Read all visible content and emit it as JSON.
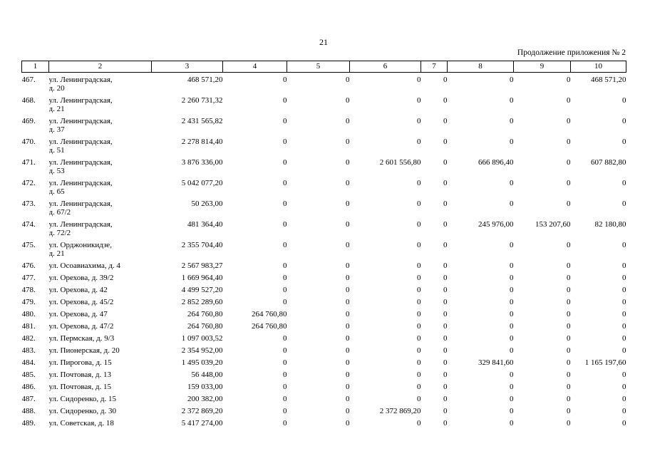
{
  "page": {
    "number": "21",
    "header_right": "Продолжение приложения № 2"
  },
  "table": {
    "columns": [
      "1",
      "2",
      "3",
      "4",
      "5",
      "6",
      "7",
      "8",
      "9",
      "10"
    ],
    "rows": [
      {
        "num": "467.",
        "address": [
          "ул. Ленинградская,",
          "д. 20"
        ],
        "values": [
          "468 571,20",
          "0",
          "0",
          "0",
          "0",
          "0",
          "0",
          "468 571,20"
        ]
      },
      {
        "num": "468.",
        "address": [
          "ул. Ленинградская,",
          "д. 21"
        ],
        "values": [
          "2 260 731,32",
          "0",
          "0",
          "0",
          "0",
          "0",
          "0",
          "0"
        ]
      },
      {
        "num": "469.",
        "address": [
          "ул. Ленинградская,",
          "д. 37"
        ],
        "values": [
          "2 431 565,82",
          "0",
          "0",
          "0",
          "0",
          "0",
          "0",
          "0"
        ]
      },
      {
        "num": "470.",
        "address": [
          "ул. Ленинградская,",
          "д. 51"
        ],
        "values": [
          "2 278 814,40",
          "0",
          "0",
          "0",
          "0",
          "0",
          "0",
          "0"
        ]
      },
      {
        "num": "471.",
        "address": [
          "ул. Ленинградская,",
          "д. 53"
        ],
        "values": [
          "3 876 336,00",
          "0",
          "0",
          "2 601 556,80",
          "0",
          "666 896,40",
          "0",
          "607 882,80"
        ]
      },
      {
        "num": "472.",
        "address": [
          "ул. Ленинградская,",
          "д. 65"
        ],
        "values": [
          "5 042 077,20",
          "0",
          "0",
          "0",
          "0",
          "0",
          "0",
          "0"
        ]
      },
      {
        "num": "473.",
        "address": [
          "ул. Ленинградская,",
          "д. 67/2"
        ],
        "values": [
          "50 263,00",
          "0",
          "0",
          "0",
          "0",
          "0",
          "0",
          "0"
        ]
      },
      {
        "num": "474.",
        "address": [
          "ул. Ленинградская,",
          "д. 72/2"
        ],
        "values": [
          "481 364,40",
          "0",
          "0",
          "0",
          "0",
          "245 976,00",
          "153 207,60",
          "82 180,80"
        ]
      },
      {
        "num": "475.",
        "address": [
          "ул. Орджоникидзе,",
          "д. 21"
        ],
        "values": [
          "2 355 704,40",
          "0",
          "0",
          "0",
          "0",
          "0",
          "0",
          "0"
        ]
      },
      {
        "num": "476.",
        "address": [
          "ул. Осоавиахима, д. 4"
        ],
        "values": [
          "2 567 983,27",
          "0",
          "0",
          "0",
          "0",
          "0",
          "0",
          "0"
        ]
      },
      {
        "num": "477.",
        "address": [
          "ул. Орехова, д. 39/2"
        ],
        "values": [
          "1 669 964,40",
          "0",
          "0",
          "0",
          "0",
          "0",
          "0",
          "0"
        ]
      },
      {
        "num": "478.",
        "address": [
          "ул. Орехова, д. 42"
        ],
        "values": [
          "4 499 527,20",
          "0",
          "0",
          "0",
          "0",
          "0",
          "0",
          "0"
        ]
      },
      {
        "num": "479.",
        "address": [
          "ул. Орехова, д. 45/2"
        ],
        "values": [
          "2 852 289,60",
          "0",
          "0",
          "0",
          "0",
          "0",
          "0",
          "0"
        ]
      },
      {
        "num": "480.",
        "address": [
          "ул. Орехова, д. 47"
        ],
        "values": [
          "264 760,80",
          "264 760,80",
          "0",
          "0",
          "0",
          "0",
          "0",
          "0"
        ]
      },
      {
        "num": "481.",
        "address": [
          "ул. Орехова, д. 47/2"
        ],
        "values": [
          "264 760,80",
          "264 760,80",
          "0",
          "0",
          "0",
          "0",
          "0",
          "0"
        ]
      },
      {
        "num": "482.",
        "address": [
          "ул. Пермская, д. 9/3"
        ],
        "values": [
          "1 097 003,52",
          "0",
          "0",
          "0",
          "0",
          "0",
          "0",
          "0"
        ]
      },
      {
        "num": "483.",
        "address": [
          "ул. Пионерская, д. 20"
        ],
        "values": [
          "2 354 952,00",
          "0",
          "0",
          "0",
          "0",
          "0",
          "0",
          "0"
        ]
      },
      {
        "num": "484.",
        "address": [
          "ул. Пирогова, д. 15"
        ],
        "values": [
          "1 495 039,20",
          "0",
          "0",
          "0",
          "0",
          "329 841,60",
          "0",
          "1 165 197,60"
        ]
      },
      {
        "num": "485.",
        "address": [
          "ул. Почтовая, д. 13"
        ],
        "values": [
          "56 448,00",
          "0",
          "0",
          "0",
          "0",
          "0",
          "0",
          "0"
        ]
      },
      {
        "num": "486.",
        "address": [
          "ул. Почтовая, д. 15"
        ],
        "values": [
          "159 033,00",
          "0",
          "0",
          "0",
          "0",
          "0",
          "0",
          "0"
        ]
      },
      {
        "num": "487.",
        "address": [
          "ул. Сидоренко, д. 15"
        ],
        "values": [
          "200 382,00",
          "0",
          "0",
          "0",
          "0",
          "0",
          "0",
          "0"
        ]
      },
      {
        "num": "488.",
        "address": [
          "ул. Сидоренко, д. 30"
        ],
        "values": [
          "2 372 869,20",
          "0",
          "0",
          "2 372 869,20",
          "0",
          "0",
          "0",
          "0"
        ]
      },
      {
        "num": "489.",
        "address": [
          "ул. Советская, д. 18"
        ],
        "values": [
          "5 417 274,00",
          "0",
          "0",
          "0",
          "0",
          "0",
          "0",
          "0"
        ]
      }
    ]
  }
}
